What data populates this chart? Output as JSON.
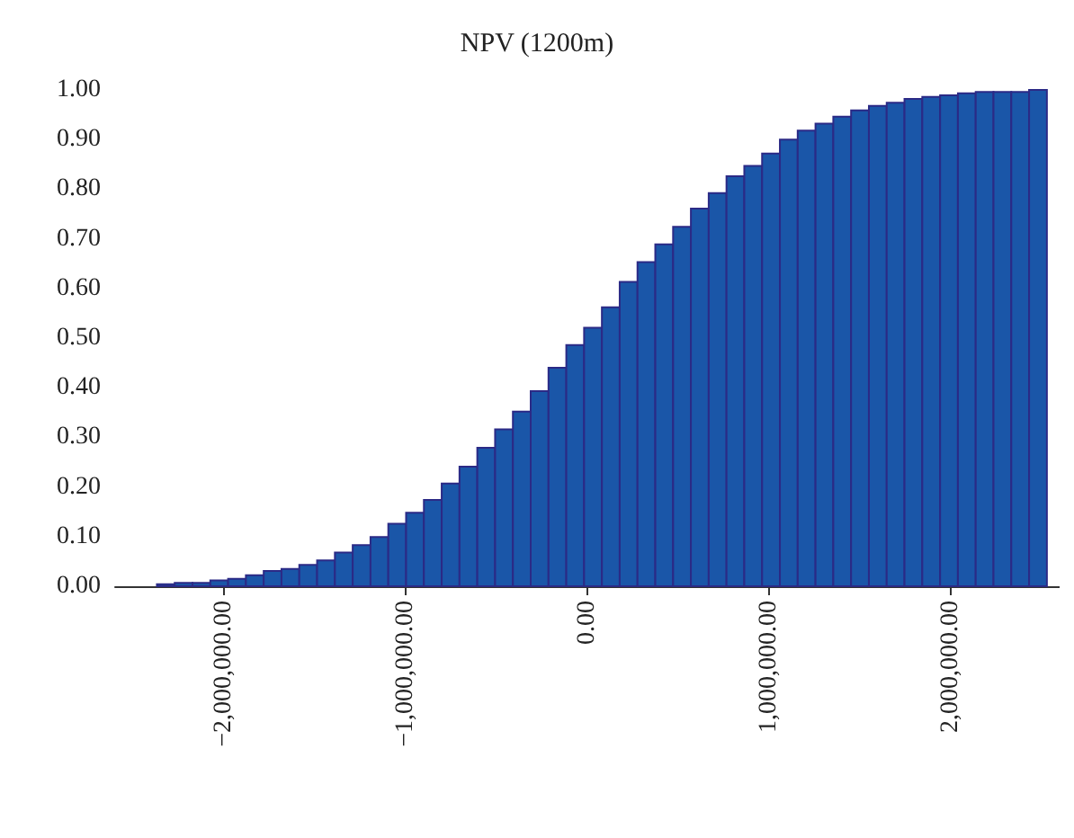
{
  "chart_data": {
    "type": "histogram",
    "title": "NPV (1200m)",
    "bins": [
      -2370000,
      -2272000,
      -2174000,
      -2076000,
      -1978000,
      -1880000,
      -1782000,
      -1684000,
      -1586000,
      -1488000,
      -1390000,
      -1292000,
      -1194000,
      -1096000,
      -998000,
      -900000,
      -802000,
      -704000,
      -606000,
      -508000,
      -410000,
      -312000,
      -214000,
      -116000,
      -18000,
      80000,
      178000,
      276000,
      374000,
      472000,
      570000,
      668000,
      766000,
      864000,
      962000,
      1060000,
      1158000,
      1256000,
      1354000,
      1452000,
      1550000,
      1648000,
      1746000,
      1844000,
      1942000,
      2040000,
      2138000,
      2236000,
      2334000,
      2432000,
      2530000
    ],
    "values": [
      0.004,
      0.007,
      0.007,
      0.012,
      0.015,
      0.022,
      0.031,
      0.035,
      0.043,
      0.052,
      0.068,
      0.083,
      0.099,
      0.126,
      0.148,
      0.174,
      0.207,
      0.241,
      0.279,
      0.316,
      0.352,
      0.393,
      0.44,
      0.486,
      0.521,
      0.562,
      0.613,
      0.653,
      0.689,
      0.724,
      0.761,
      0.792,
      0.826,
      0.847,
      0.872,
      0.9,
      0.918,
      0.932,
      0.946,
      0.959,
      0.968,
      0.974,
      0.982,
      0.986,
      0.989,
      0.993,
      0.996,
      0.996,
      0.996,
      1.0
    ],
    "color": "#1a56a8",
    "xlim": [
      -2600000,
      2600000
    ],
    "xticks": [
      {
        "value": -2000000,
        "label": "−2,000,000.00"
      },
      {
        "value": -1000000,
        "label": "−1,000,000.00"
      },
      {
        "value": 0,
        "label": "0.00"
      },
      {
        "value": 1000000,
        "label": "1,000,000.00"
      },
      {
        "value": 2000000,
        "label": "2,000,000.00"
      }
    ],
    "ylim": [
      0,
      1
    ],
    "yticks": [
      {
        "value": 0,
        "label": "0.00"
      },
      {
        "value": 0.1,
        "label": "0.10"
      },
      {
        "value": 0.2,
        "label": "0.20"
      },
      {
        "value": 0.3,
        "label": "0.30"
      },
      {
        "value": 0.4,
        "label": "0.40"
      },
      {
        "value": 0.5,
        "label": "0.50"
      },
      {
        "value": 0.6,
        "label": "0.60"
      },
      {
        "value": 0.7,
        "label": "0.70"
      },
      {
        "value": 0.8,
        "label": "0.80"
      },
      {
        "value": 0.9,
        "label": "0.90"
      },
      {
        "value": 1,
        "label": "1.00"
      }
    ],
    "tick_labels": true
  }
}
